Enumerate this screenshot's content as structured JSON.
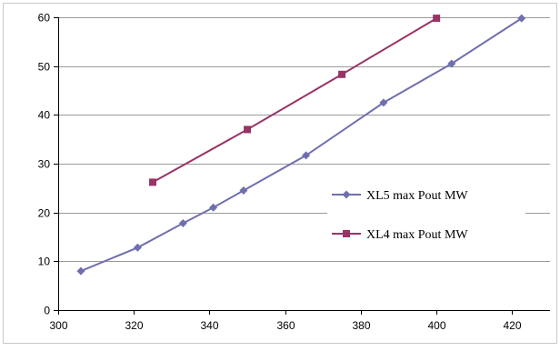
{
  "chart_data": {
    "type": "line",
    "title": "",
    "xlabel": "",
    "ylabel": "",
    "xlim": [
      300,
      430
    ],
    "ylim": [
      0,
      60
    ],
    "x_ticks": [
      300,
      320,
      340,
      360,
      380,
      400,
      420
    ],
    "y_ticks": [
      0,
      10,
      20,
      30,
      40,
      50,
      60
    ],
    "grid": "horizontal",
    "legend_position": "right",
    "series": [
      {
        "name": "XL5 max Pout MW",
        "color": "#6F6FB0",
        "marker": "diamond",
        "x": [
          306,
          321,
          333,
          341,
          349,
          365.5,
          386,
          404,
          422.5
        ],
        "y": [
          8,
          12.8,
          17.8,
          21,
          24.5,
          31.7,
          42.5,
          50.5,
          59.8
        ]
      },
      {
        "name": "XL4 max Pout MW",
        "color": "#993366",
        "marker": "square",
        "x": [
          325,
          350,
          375,
          400
        ],
        "y": [
          26.2,
          37,
          48.3,
          59.8
        ]
      }
    ]
  }
}
